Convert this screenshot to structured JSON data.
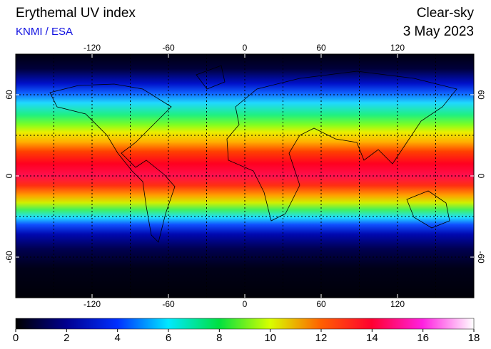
{
  "header": {
    "title": "Erythemal UV index",
    "source": "KNMI / ESA",
    "mode": "Clear-sky",
    "date": "3 May 2023"
  },
  "map": {
    "xlim": [
      -180,
      180
    ],
    "ylim": [
      -90,
      90
    ],
    "xticks": [
      -120,
      -60,
      0,
      60,
      120
    ],
    "yticks": [
      -60,
      0,
      60
    ]
  },
  "colorbar": {
    "lim": [
      0,
      18
    ],
    "ticks": [
      0,
      2,
      4,
      6,
      8,
      10,
      12,
      14,
      16,
      18
    ]
  }
}
